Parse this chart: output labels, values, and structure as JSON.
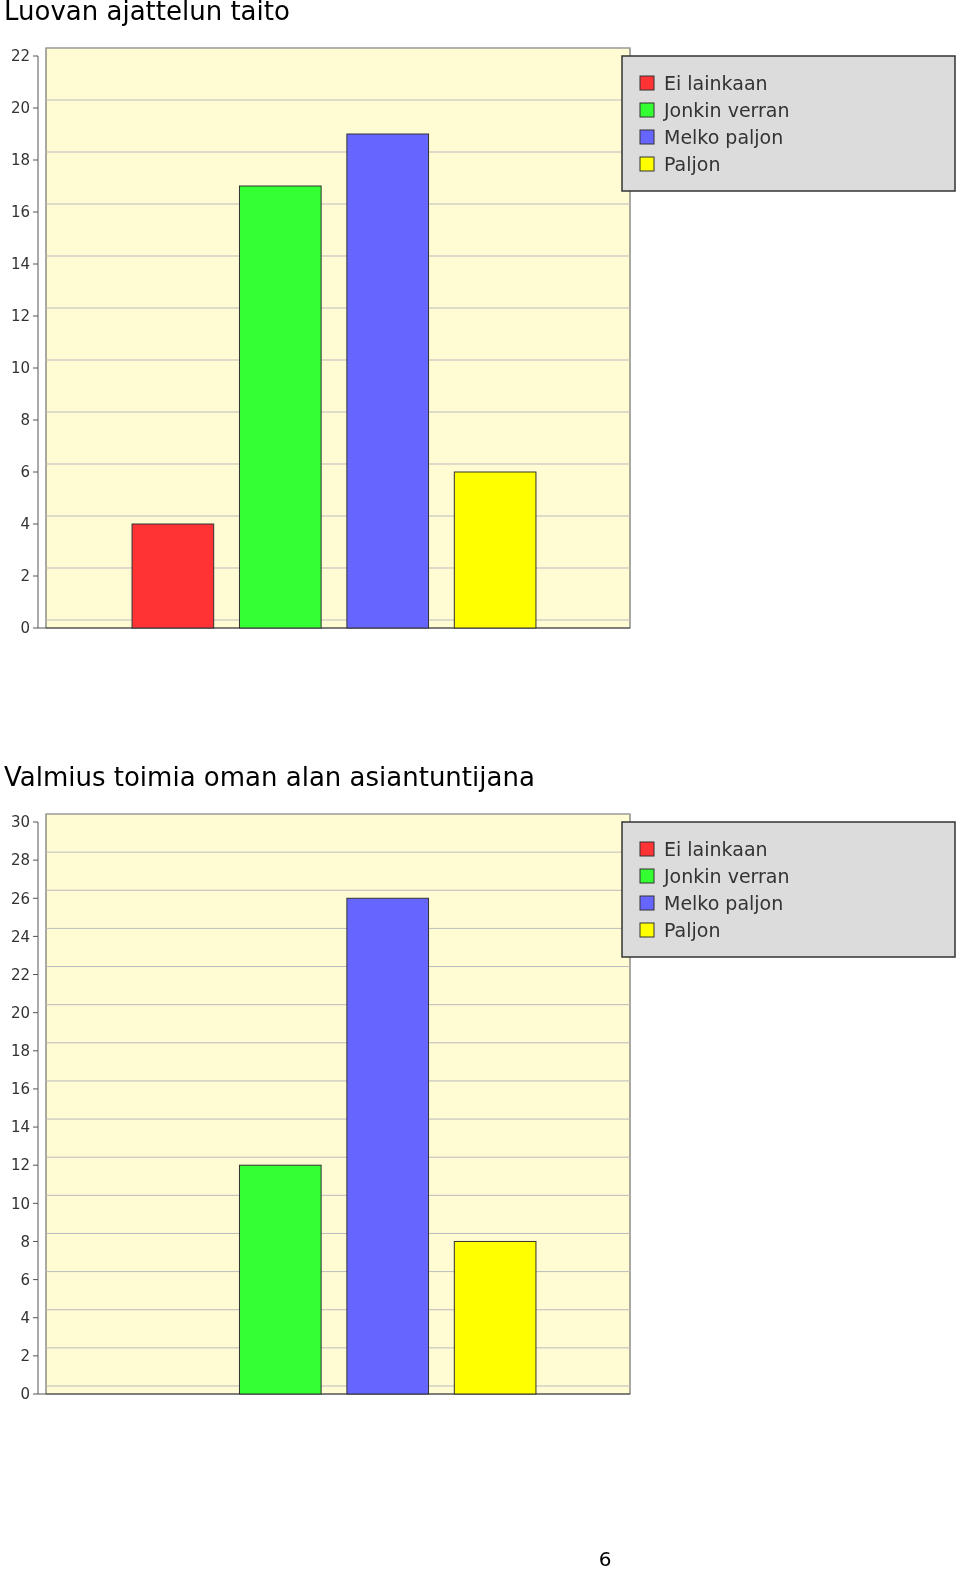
{
  "chart_data": [
    {
      "type": "bar",
      "title": "Luovan ajattelun taito",
      "categories": [
        null
      ],
      "series": [
        {
          "name": "Ei lainkaan",
          "color": "#ff3333",
          "values": [
            4
          ]
        },
        {
          "name": "Jonkin verran",
          "color": "#33ff33",
          "values": [
            17
          ]
        },
        {
          "name": "Melko paljon",
          "color": "#6666ff",
          "values": [
            19
          ]
        },
        {
          "name": "Paljon",
          "color": "#ffff00",
          "values": [
            6
          ]
        }
      ],
      "ylim": [
        0,
        22
      ],
      "yticks": [
        0,
        2,
        4,
        6,
        8,
        10,
        12,
        14,
        16,
        18,
        20,
        22
      ],
      "grid": "y",
      "legend": "right"
    },
    {
      "type": "bar",
      "title": "Valmius toimia oman alan asiantuntijana",
      "categories": [
        null
      ],
      "series": [
        {
          "name": "Ei lainkaan",
          "color": "#ff3333",
          "values": [
            0
          ]
        },
        {
          "name": "Jonkin verran",
          "color": "#33ff33",
          "values": [
            12
          ]
        },
        {
          "name": "Melko paljon",
          "color": "#6666ff",
          "values": [
            26
          ]
        },
        {
          "name": "Paljon",
          "color": "#ffff00",
          "values": [
            8
          ]
        }
      ],
      "ylim": [
        0,
        30
      ],
      "yticks": [
        0,
        2,
        4,
        6,
        8,
        10,
        12,
        14,
        16,
        18,
        20,
        22,
        24,
        26,
        28,
        30
      ],
      "grid": "y",
      "legend": "right",
      "annotations": [
        "6"
      ]
    }
  ]
}
